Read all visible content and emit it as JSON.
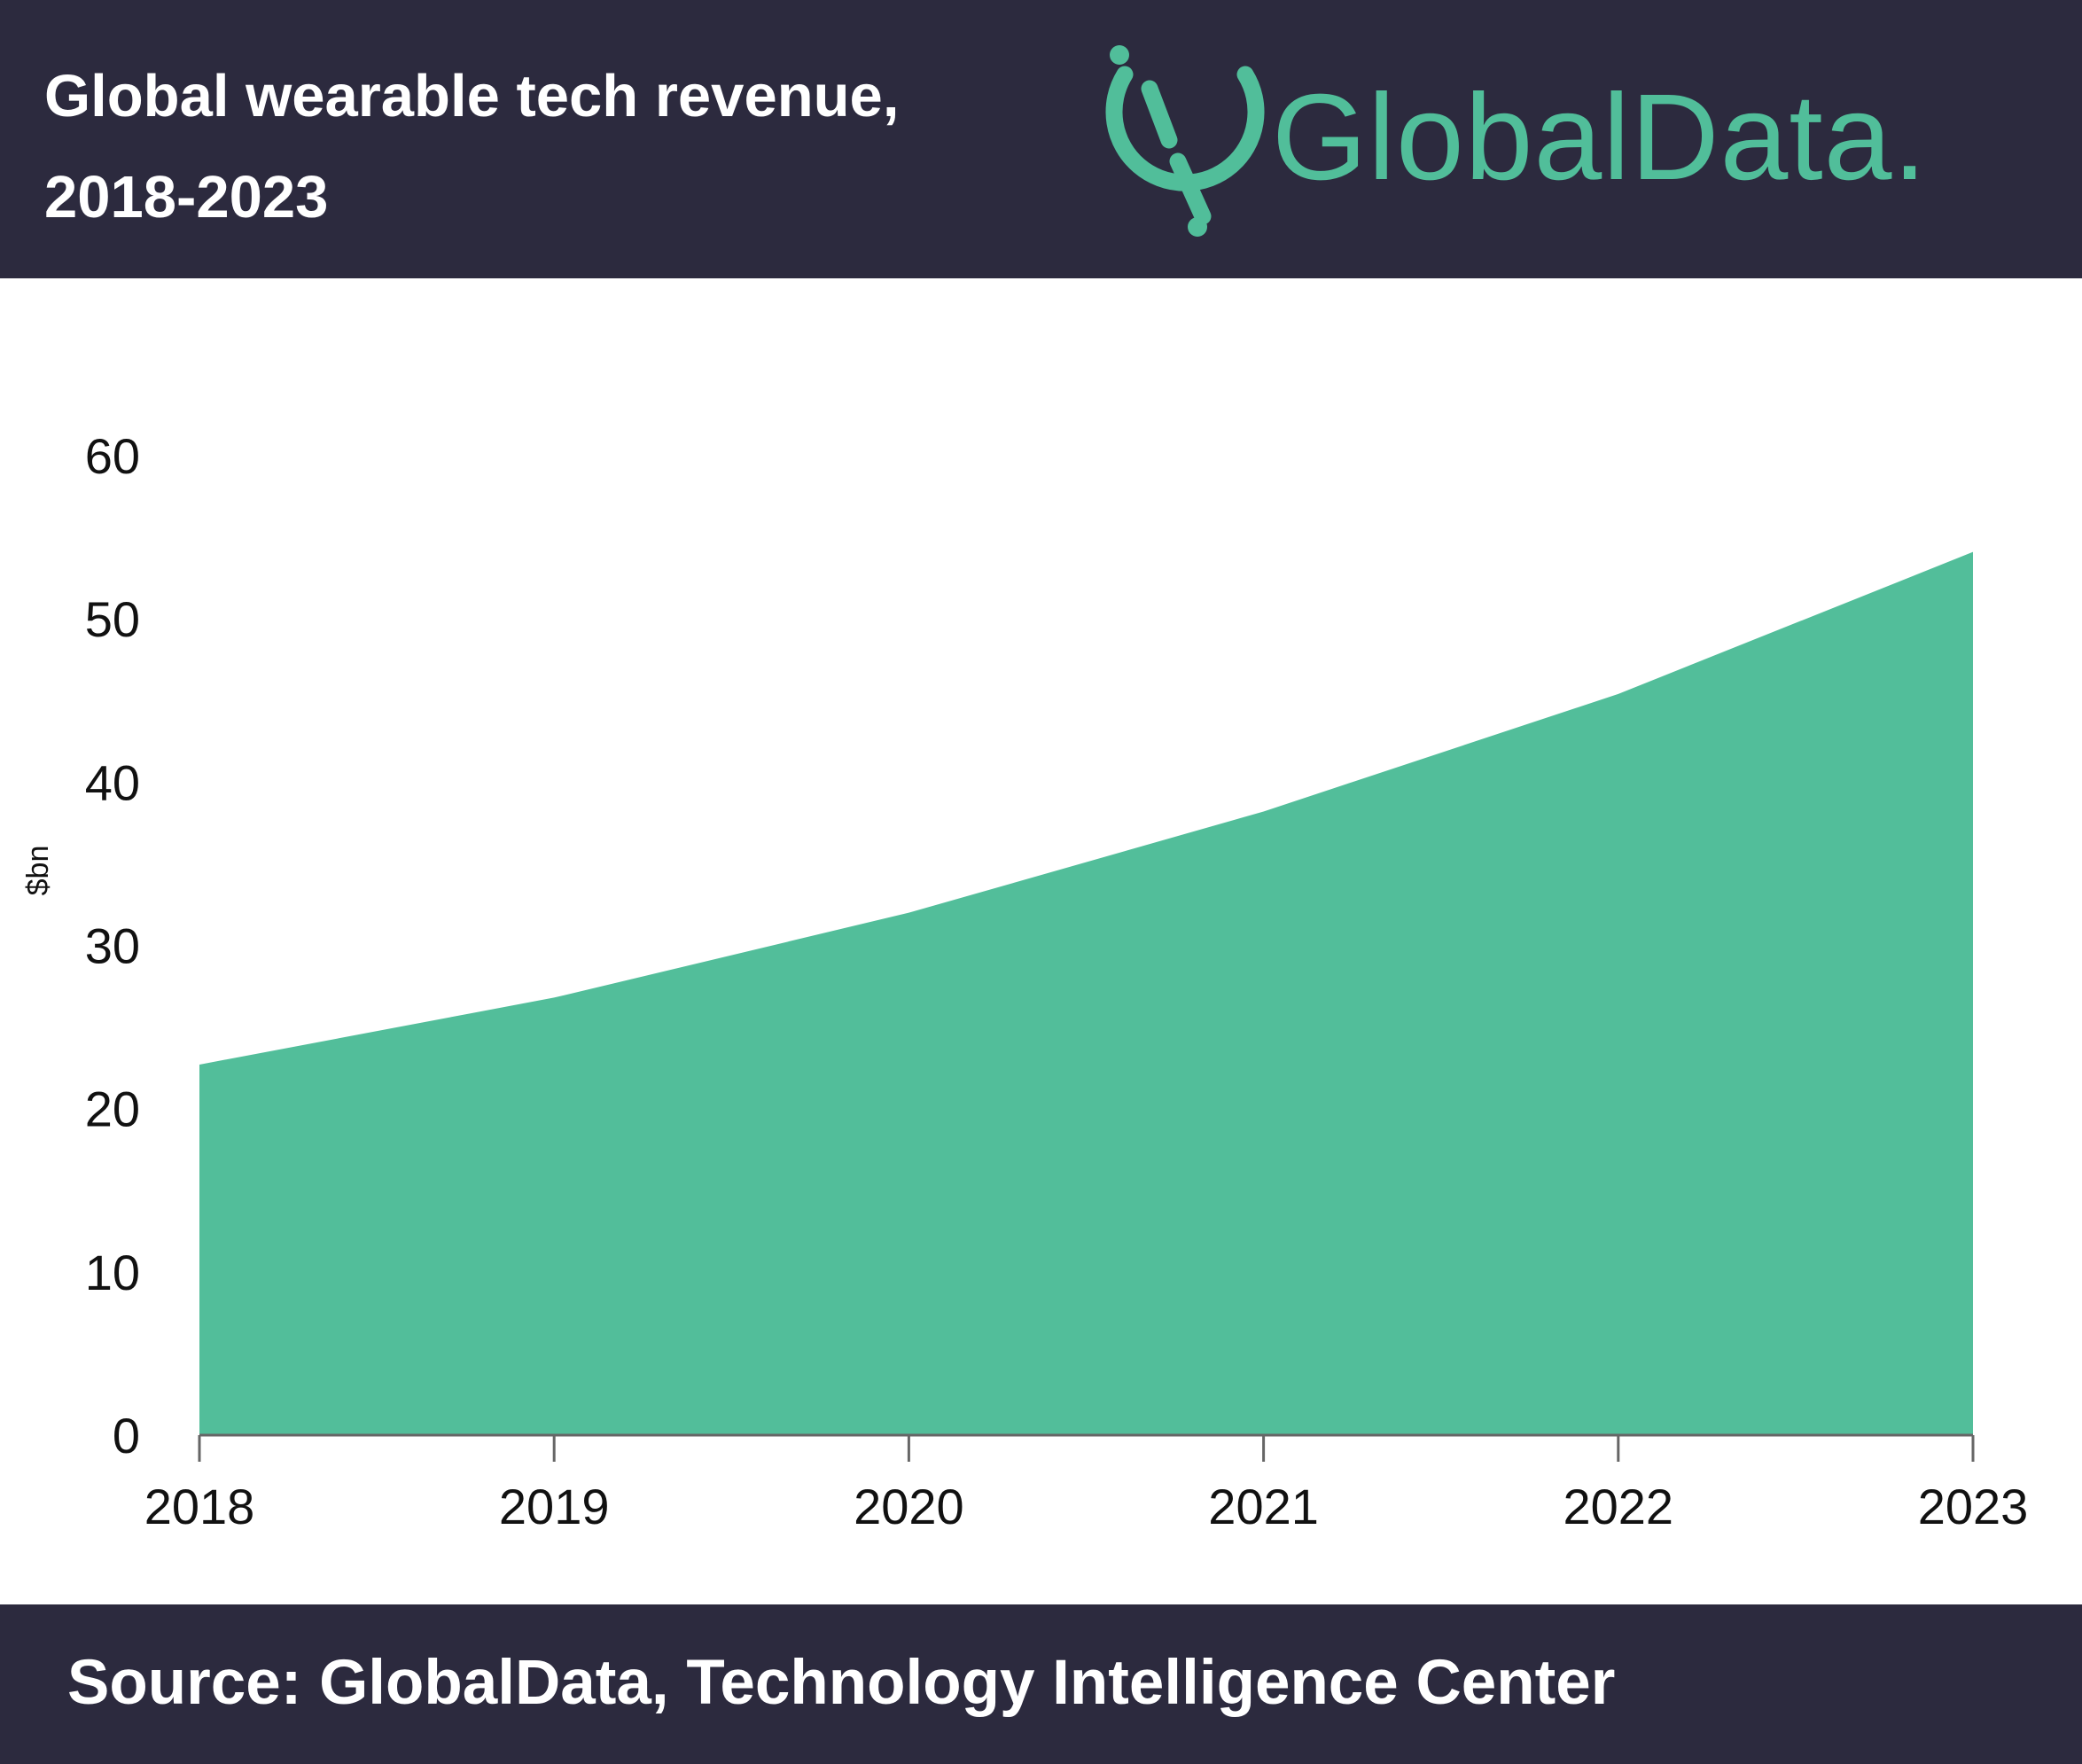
{
  "header": {
    "title": "Global wearable tech revenue,\n2018-2023",
    "logo_text": "GlobalData."
  },
  "footer": {
    "source": "Source: GlobalData, Technology Intelligence Center"
  },
  "colors": {
    "header_bg": "#2c2a3e",
    "area_fill": "#52be9a",
    "accent": "#51be9a"
  },
  "chart_data": {
    "type": "area",
    "x": [
      "2018",
      "2019",
      "2020",
      "2021",
      "2022",
      "2023"
    ],
    "series": [
      {
        "values": [
          22.7,
          26.8,
          32.0,
          38.2,
          45.4,
          54.1
        ]
      }
    ],
    "title": "Global wearable tech revenue, 2018-2023",
    "xlabel": "",
    "ylabel": "$bn",
    "ylim": [
      0,
      60
    ],
    "yticks": [
      0,
      10,
      20,
      30,
      40,
      50,
      60
    ],
    "grid": false,
    "legend": "none"
  }
}
